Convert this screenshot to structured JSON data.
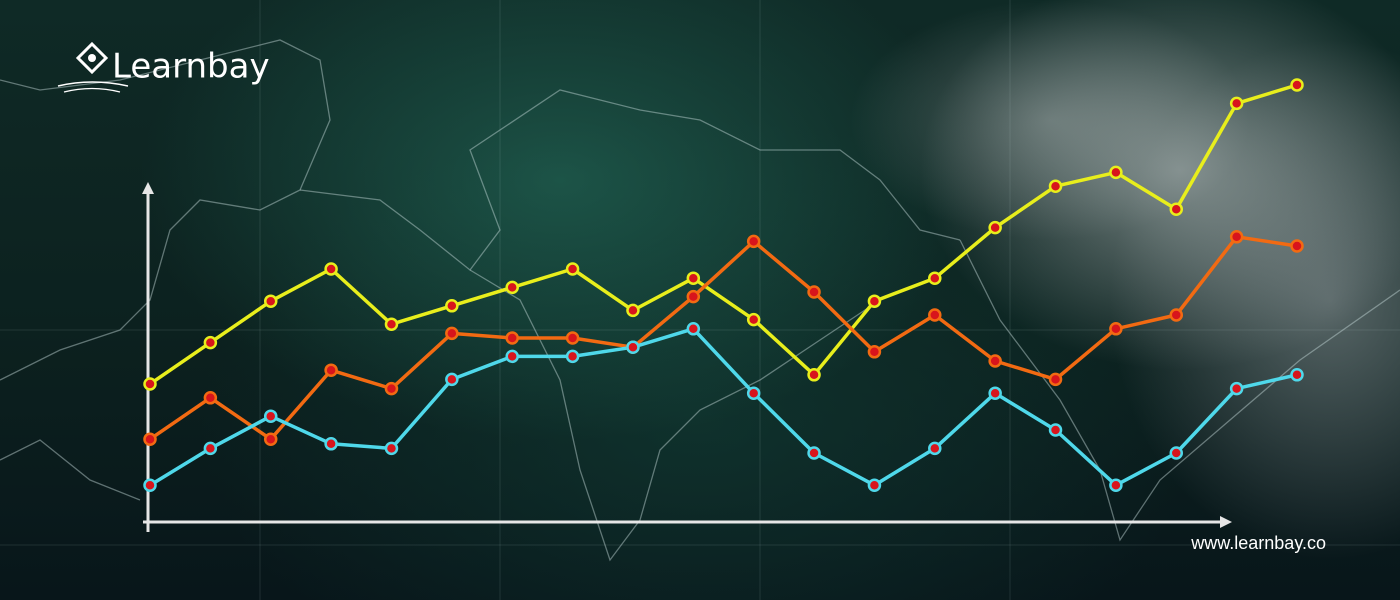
{
  "brand": "Learnbay",
  "url": "www.learnbay.co",
  "chart_data": {
    "type": "line",
    "x": [
      0,
      1,
      2,
      3,
      4,
      5,
      6,
      7,
      8,
      9,
      10,
      11,
      12,
      13,
      14,
      15,
      16,
      17,
      18,
      19
    ],
    "xlim": [
      0,
      19
    ],
    "ylim": [
      0,
      100
    ],
    "series": [
      {
        "color": "#e8ee1c",
        "values": [
          30,
          39,
          48,
          55,
          43,
          47,
          51,
          55,
          46,
          53,
          44,
          32,
          48,
          53,
          64,
          73,
          76,
          68,
          91,
          95
        ]
      },
      {
        "color": "#f26a12",
        "values": [
          18,
          27,
          18,
          33,
          29,
          41,
          40,
          40,
          38,
          49,
          61,
          50,
          37,
          45,
          35,
          31,
          42,
          45,
          62,
          60
        ]
      },
      {
        "color": "#4fd8ea",
        "values": [
          8,
          16,
          23,
          17,
          16,
          31,
          36,
          36,
          38,
          42,
          28,
          15,
          8,
          16,
          28,
          20,
          8,
          15,
          29,
          32
        ]
      }
    ]
  }
}
